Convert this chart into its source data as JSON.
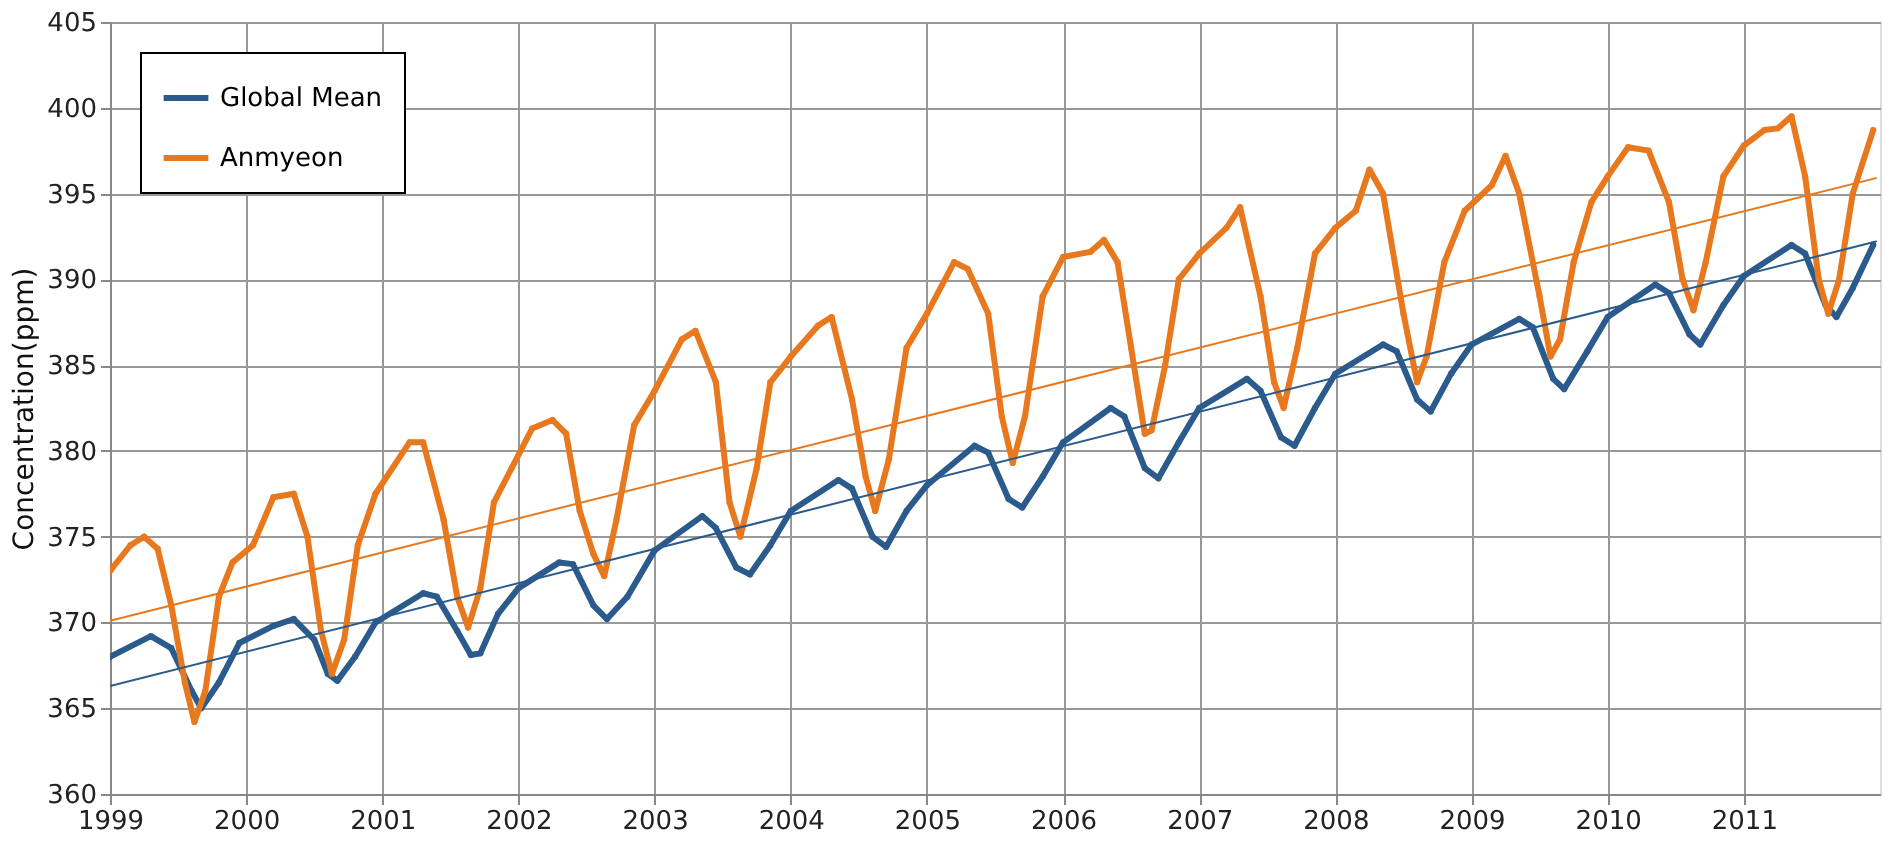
{
  "chart_data": {
    "type": "line",
    "ylabel": "Concentration(ppm)",
    "xlim": [
      1999,
      2012
    ],
    "xticks": [
      1999,
      2000,
      2001,
      2002,
      2003,
      2004,
      2005,
      2006,
      2007,
      2008,
      2009,
      2010,
      2011
    ],
    "ylim": [
      360,
      405
    ],
    "yticks": [
      360,
      365,
      370,
      375,
      380,
      385,
      390,
      395,
      400,
      405
    ],
    "grid": true,
    "legend": "top left",
    "marker": "circle",
    "line_style": "solid",
    "series": [
      {
        "name": "Global Mean",
        "color": "#2b5b8c",
        "x": [
          1999.0,
          1999.3,
          1999.45,
          1999.6,
          1999.67,
          1999.8,
          1999.95,
          2000.2,
          2000.35,
          2000.5,
          2000.6,
          2000.67,
          2000.8,
          2000.95,
          2001.3,
          2001.4,
          2001.55,
          2001.65,
          2001.72,
          2001.85,
          2002.0,
          2002.3,
          2002.4,
          2002.55,
          2002.65,
          2002.8,
          2003.0,
          2003.35,
          2003.45,
          2003.6,
          2003.7,
          2003.85,
          2004.0,
          2004.35,
          2004.45,
          2004.6,
          2004.7,
          2004.85,
          2005.0,
          2005.35,
          2005.45,
          2005.6,
          2005.7,
          2005.85,
          2006.0,
          2006.35,
          2006.45,
          2006.6,
          2006.7,
          2006.85,
          2007.0,
          2007.35,
          2007.45,
          2007.6,
          2007.7,
          2007.85,
          2008.0,
          2008.35,
          2008.45,
          2008.6,
          2008.7,
          2008.85,
          2009.0,
          2009.35,
          2009.45,
          2009.6,
          2009.68,
          2009.85,
          2010.0,
          2010.35,
          2010.45,
          2010.6,
          2010.68,
          2010.85,
          2011.0,
          2011.35,
          2011.45,
          2011.6,
          2011.68,
          2011.8,
          2011.95
        ],
        "values": [
          368.0,
          369.2,
          368.5,
          366.0,
          365.0,
          366.5,
          368.8,
          369.8,
          370.2,
          369.0,
          367.0,
          366.6,
          368.0,
          370.0,
          371.7,
          371.5,
          369.5,
          368.1,
          368.2,
          370.5,
          372.0,
          373.5,
          373.4,
          371.0,
          370.2,
          371.5,
          374.2,
          376.2,
          375.5,
          373.2,
          372.8,
          374.5,
          376.5,
          378.3,
          377.8,
          375.0,
          374.4,
          376.5,
          378.0,
          380.3,
          379.9,
          377.2,
          376.7,
          378.5,
          380.5,
          382.5,
          382.0,
          379.0,
          378.4,
          380.5,
          382.5,
          384.2,
          383.5,
          380.8,
          380.3,
          382.5,
          384.5,
          386.2,
          385.8,
          383.0,
          382.3,
          384.5,
          386.2,
          387.7,
          387.2,
          384.2,
          383.6,
          385.8,
          387.8,
          389.7,
          389.2,
          386.8,
          386.2,
          388.5,
          390.2,
          392.0,
          391.5,
          388.5,
          387.8,
          389.5,
          392.0
        ]
      },
      {
        "name": "Anmyeon",
        "color": "#e8781e",
        "x": [
          1999.0,
          1999.15,
          1999.25,
          1999.35,
          1999.45,
          1999.55,
          1999.62,
          1999.7,
          1999.8,
          1999.9,
          2000.05,
          2000.2,
          2000.35,
          2000.45,
          2000.55,
          2000.63,
          2000.72,
          2000.82,
          2000.95,
          2001.2,
          2001.3,
          2001.45,
          2001.55,
          2001.63,
          2001.72,
          2001.82,
          2001.95,
          2002.1,
          2002.25,
          2002.35,
          2002.45,
          2002.55,
          2002.63,
          2002.72,
          2002.85,
          2003.0,
          2003.2,
          2003.3,
          2003.45,
          2003.55,
          2003.63,
          2003.75,
          2003.85,
          2004.0,
          2004.2,
          2004.3,
          2004.45,
          2004.55,
          2004.62,
          2004.72,
          2004.85,
          2005.0,
          2005.2,
          2005.3,
          2005.45,
          2005.55,
          2005.63,
          2005.72,
          2005.85,
          2006.0,
          2006.2,
          2006.3,
          2006.4,
          2006.5,
          2006.6,
          2006.65,
          2006.75,
          2006.85,
          2007.0,
          2007.2,
          2007.3,
          2007.45,
          2007.55,
          2007.62,
          2007.72,
          2007.85,
          2008.0,
          2008.15,
          2008.25,
          2008.35,
          2008.5,
          2008.6,
          2008.67,
          2008.8,
          2008.95,
          2009.15,
          2009.25,
          2009.35,
          2009.5,
          2009.58,
          2009.65,
          2009.75,
          2009.88,
          2010.0,
          2010.15,
          2010.3,
          2010.45,
          2010.55,
          2010.63,
          2010.72,
          2010.85,
          2011.0,
          2011.15,
          2011.25,
          2011.35,
          2011.45,
          2011.55,
          2011.62,
          2011.7,
          2011.8,
          2011.95
        ],
        "values": [
          373.0,
          374.5,
          375.0,
          374.3,
          371.0,
          366.5,
          364.2,
          366.0,
          371.5,
          373.5,
          374.5,
          377.3,
          377.5,
          375.0,
          369.5,
          367.0,
          369.0,
          374.5,
          377.5,
          380.5,
          380.5,
          376.0,
          371.5,
          369.7,
          372.0,
          377.0,
          379.0,
          381.3,
          381.8,
          381.0,
          376.5,
          374.0,
          372.7,
          376.0,
          381.5,
          383.5,
          386.5,
          387.0,
          384.0,
          377.0,
          375.0,
          379.0,
          384.0,
          385.5,
          387.3,
          387.8,
          383.0,
          378.5,
          376.5,
          379.5,
          386.0,
          388.0,
          391.0,
          390.6,
          388.0,
          382.0,
          379.3,
          382.0,
          389.0,
          391.3,
          391.6,
          392.3,
          391.0,
          386.0,
          381.0,
          381.2,
          385.0,
          390.0,
          391.5,
          393.0,
          394.2,
          389.0,
          384.0,
          382.5,
          386.0,
          391.5,
          393.0,
          394.0,
          396.4,
          395.0,
          388.0,
          384.0,
          385.5,
          391.0,
          394.0,
          395.5,
          397.2,
          395.0,
          389.0,
          385.5,
          386.5,
          391.0,
          394.5,
          396.0,
          397.7,
          397.5,
          394.5,
          390.0,
          388.2,
          391.0,
          396.0,
          397.8,
          398.7,
          398.8,
          399.5,
          396.0,
          390.0,
          388.0,
          390.0,
          395.0,
          398.7
        ]
      },
      {
        "type": "line",
        "marker": "none",
        "color": "#2b5b8c",
        "x": [
          1999.0,
          2011.97
        ],
        "values": [
          366.3,
          392.2
        ]
      },
      {
        "type": "line",
        "marker": "none",
        "color": "#e8781e",
        "x": [
          1999.0,
          2011.97
        ],
        "values": [
          370.1,
          395.9
        ]
      }
    ]
  }
}
